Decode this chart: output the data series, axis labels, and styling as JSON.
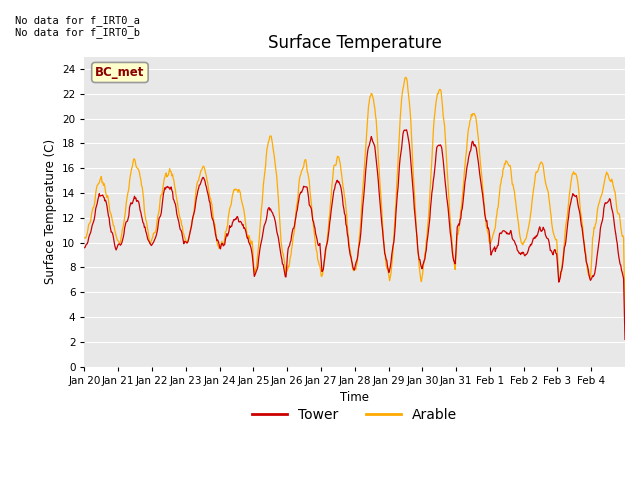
{
  "title": "Surface Temperature",
  "ylabel": "Surface Temperature (C)",
  "xlabel": "Time",
  "annotation_text": "No data for f_IRT0_a\nNo data for f_IRT0_b",
  "annotation_box_label": "BC_met",
  "ylim": [
    0,
    25
  ],
  "yticks": [
    0,
    2,
    4,
    6,
    8,
    10,
    12,
    14,
    16,
    18,
    20,
    22,
    24
  ],
  "background_color": "#e8e8e8",
  "tower_color": "#cc0000",
  "arable_color": "#ffaa00",
  "legend_tower": "Tower",
  "legend_arable": "Arable",
  "xtick_labels": [
    "Jan 20",
    "Jan 21",
    "Jan 22",
    "Jan 23",
    "Jan 24",
    "Jan 25",
    "Jan 26",
    "Jan 27",
    "Jan 28",
    "Jan 29",
    "Jan 30",
    "Jan 31",
    "Feb 1",
    "Feb 2",
    "Feb 3",
    "Feb 4"
  ],
  "figwidth": 6.4,
  "figheight": 4.8,
  "dpi": 100
}
